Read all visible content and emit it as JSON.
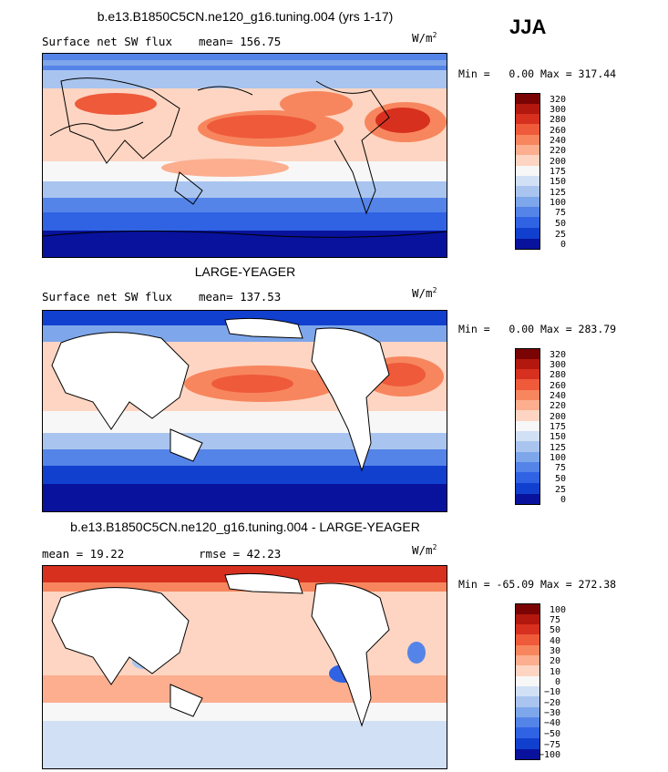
{
  "season": "JJA",
  "panels": [
    {
      "title": "b.e13.B1850C5CN.ne120_g16.tuning.004 (yrs 1-17)",
      "left_label": "Surface net SW flux",
      "stat1": "mean= 156.75",
      "stat2": "",
      "units": "W/m",
      "units_sup": "2",
      "min_text": "Min =   0.00 Max = 317.44",
      "colorbar_labels": [
        "320",
        "300",
        "280",
        "260",
        "240",
        "220",
        "200",
        "175",
        "150",
        "125",
        "100",
        "75",
        "50",
        "25",
        "0"
      ]
    },
    {
      "title": "LARGE-YEAGER",
      "left_label": "Surface net SW flux",
      "stat1": "mean= 137.53",
      "stat2": "",
      "units": "W/m",
      "units_sup": "2",
      "min_text": "Min =   0.00 Max = 283.79",
      "colorbar_labels": [
        "320",
        "300",
        "280",
        "260",
        "240",
        "220",
        "200",
        "175",
        "150",
        "125",
        "100",
        "75",
        "50",
        "25",
        "0"
      ]
    },
    {
      "title": "b.e13.B1850C5CN.ne120_g16.tuning.004 - LARGE-YEAGER",
      "left_label": "",
      "stat1": "mean =  19.22",
      "stat2": "rmse =  42.23",
      "units": "W/m",
      "units_sup": "2",
      "min_text": "Min = -65.09 Max = 272.38",
      "colorbar_labels": [
        "100",
        "75",
        "50",
        "40",
        "30",
        "20",
        "10",
        "0",
        "−10",
        "−20",
        "−30",
        "−40",
        "−50",
        "−75",
        "−100"
      ]
    }
  ],
  "colors": {
    "abs_scale": [
      "#7a0403",
      "#b2180e",
      "#d7301f",
      "#ee5a3a",
      "#f7865e",
      "#fcae8f",
      "#fdd5c2",
      "#f7f7f7",
      "#d1e0f5",
      "#a9c5ef",
      "#7ea6ea",
      "#5584e8",
      "#2f63e3",
      "#1140cf",
      "#08129c"
    ],
    "diff_scale": [
      "#7a0403",
      "#b2180e",
      "#d7301f",
      "#ee5a3a",
      "#f7865e",
      "#fcae8f",
      "#fdd5c2",
      "#f7f7f7",
      "#d1e0f5",
      "#a9c5ef",
      "#7ea6ea",
      "#5584e8",
      "#2f63e3",
      "#1140cf",
      "#08129c"
    ],
    "land": "#ffffff",
    "coast": "#000000"
  }
}
